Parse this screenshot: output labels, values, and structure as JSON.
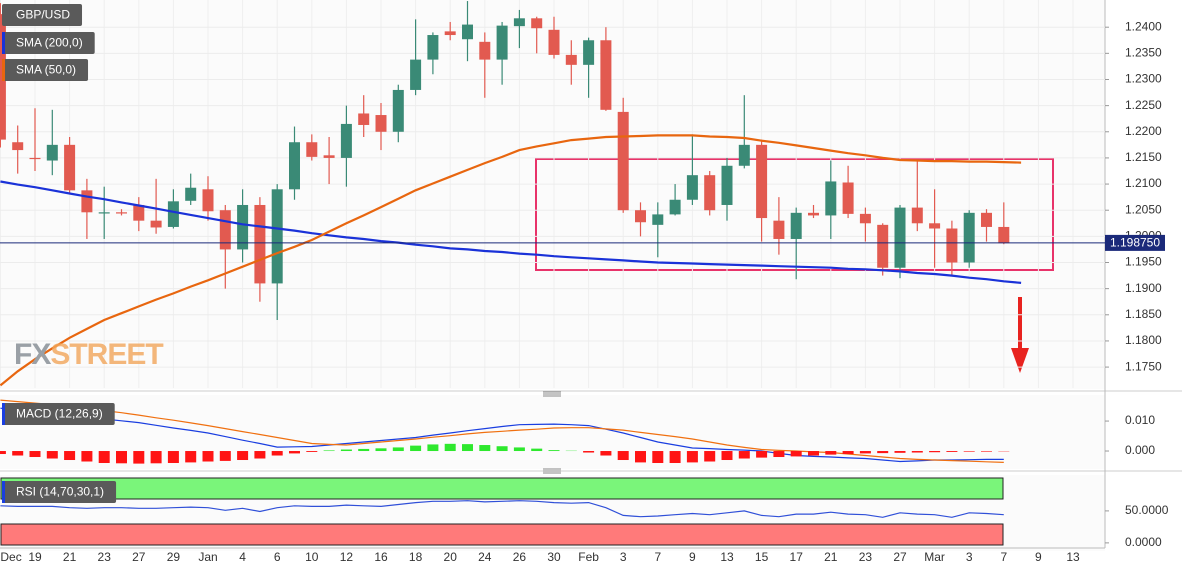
{
  "chart_data": [
    {
      "type": "candlestick",
      "categories": [
        "Dec",
        null,
        "19",
        null,
        "21",
        null,
        "23",
        null,
        "27",
        null,
        "29",
        null,
        "Jan",
        null,
        "4",
        null,
        "6",
        null,
        "10",
        null,
        "12",
        null,
        "16",
        null,
        "18",
        null,
        "20",
        null,
        "24",
        null,
        "26",
        null,
        "30",
        null,
        "Feb",
        null,
        "3",
        null,
        "7",
        null,
        "9",
        null,
        "13",
        null,
        "15",
        null,
        "17",
        null,
        "21",
        null,
        "23",
        null,
        "27",
        null,
        "Mar",
        null,
        "3",
        null,
        "7",
        null,
        "9",
        null,
        "13",
        null
      ],
      "series": [
        {
          "name": "GBP/USD",
          "up_color": "#3a8a76",
          "down_color": "#e25a50",
          "open": [
            1.2425,
            1.218,
            1.215,
            1.2145,
            1.2175,
            1.2088,
            1.2044,
            1.2046,
            1.206,
            1.203,
            1.2018,
            1.2068,
            1.209,
            1.205,
            1.1975,
            1.206,
            1.191,
            1.209,
            1.218,
            1.2155,
            1.215,
            1.2235,
            1.2232,
            1.22,
            1.228,
            1.2338,
            1.2392,
            1.2377,
            1.2372,
            1.2338,
            1.2402,
            1.2417,
            1.2395,
            1.2347,
            1.2328,
            1.2375,
            1.2238,
            1.205,
            1.2022,
            1.2042,
            1.207,
            1.2117,
            1.206,
            1.2135,
            1.2175,
            1.203,
            1.1995,
            1.2045,
            1.204,
            1.2103,
            1.2043,
            1.2022,
            1.194,
            1.2055,
            1.2025,
            1.2015,
            1.195,
            1.2045,
            1.2018,
            null,
            null,
            null,
            null,
            null
          ],
          "high": [
            1.2446,
            1.2212,
            1.2245,
            1.2242,
            1.219,
            1.211,
            1.2095,
            1.2052,
            1.2075,
            1.211,
            1.209,
            1.212,
            1.2115,
            1.206,
            1.209,
            1.2075,
            1.21,
            1.221,
            1.2195,
            1.219,
            1.225,
            1.227,
            1.2255,
            1.229,
            1.2415,
            1.239,
            1.241,
            1.245,
            1.239,
            1.241,
            1.2433,
            1.242,
            1.242,
            1.2375,
            1.238,
            1.24,
            1.2265,
            1.2065,
            1.2065,
            1.21,
            1.2195,
            1.2125,
            1.215,
            1.227,
            1.2185,
            1.2075,
            1.2055,
            1.206,
            1.2145,
            1.2135,
            1.2055,
            1.2025,
            1.206,
            1.2145,
            1.209,
            1.203,
            1.205,
            1.2052,
            1.2065,
            null,
            null,
            null,
            null,
            null
          ],
          "low": [
            1.217,
            1.212,
            1.2125,
            1.2117,
            1.208,
            1.1995,
            1.1995,
            1.204,
            1.201,
            1.2005,
            1.2015,
            1.206,
            1.203,
            1.19,
            1.195,
            1.1875,
            1.184,
            1.207,
            1.2145,
            1.21,
            1.2095,
            1.219,
            1.2165,
            1.218,
            1.227,
            1.231,
            1.2375,
            1.2335,
            1.2265,
            1.229,
            1.236,
            1.235,
            1.234,
            1.229,
            1.2265,
            1.224,
            1.2045,
            1.2,
            1.196,
            1.204,
            1.206,
            1.204,
            1.203,
            1.213,
            1.199,
            1.1965,
            1.1918,
            1.2035,
            1.1995,
            1.2035,
            1.199,
            1.1925,
            1.192,
            1.201,
            1.194,
            1.1925,
            1.194,
            1.199,
            1.1985,
            null,
            null,
            null,
            null,
            null
          ],
          "close": [
            1.2185,
            1.2165,
            1.2148,
            1.2175,
            1.2088,
            1.2046,
            1.2046,
            1.2045,
            1.203,
            1.2017,
            1.2067,
            1.2093,
            1.2048,
            1.1975,
            1.206,
            1.191,
            1.209,
            1.218,
            1.2152,
            1.215,
            1.2215,
            1.2213,
            1.22,
            1.228,
            1.2338,
            1.2385,
            1.2385,
            1.2405,
            1.2338,
            1.2403,
            1.2417,
            1.2398,
            1.2347,
            1.2328,
            1.2375,
            1.2242,
            1.205,
            1.2027,
            1.2042,
            1.207,
            1.2117,
            1.205,
            1.2135,
            1.2175,
            1.2035,
            1.1995,
            1.2045,
            1.204,
            1.2105,
            1.2043,
            1.2025,
            1.194,
            1.2055,
            1.2025,
            1.2015,
            1.195,
            1.2045,
            1.2018,
            1.1987,
            null,
            null,
            null,
            null,
            null
          ]
        },
        {
          "name": "SMA (200,0)",
          "color": "#1a32d8",
          "values": [
            1.2105,
            1.2099,
            1.2094,
            1.2088,
            1.2082,
            1.2076,
            1.2071,
            1.2065,
            1.2059,
            1.2053,
            1.2047,
            1.2041,
            1.2035,
            1.2029,
            1.2023,
            1.2019,
            1.2015,
            1.2011,
            1.2006,
            1.2002,
            1.1998,
            1.1995,
            1.1991,
            1.1988,
            1.1984,
            1.1981,
            1.1977,
            1.1975,
            1.1972,
            1.197,
            1.1967,
            1.1965,
            1.1962,
            1.196,
            1.1958,
            1.1956,
            1.1954,
            1.1952,
            1.195,
            1.1949,
            1.1948,
            1.1947,
            1.1946,
            1.1945,
            1.1944,
            1.1943,
            1.1942,
            1.1941,
            1.194,
            1.1938,
            1.1937,
            1.1935,
            1.1933,
            1.193,
            1.1928,
            1.1925,
            1.1921,
            1.1918,
            1.1914,
            1.1911,
            null,
            null,
            null,
            null
          ]
        },
        {
          "name": "SMA (50,0)",
          "color": "#e8660f",
          "values": [
            1.1715,
            1.1742,
            1.1765,
            1.1786,
            1.1806,
            1.1823,
            1.184,
            1.1853,
            1.1866,
            1.1879,
            1.1891,
            1.1904,
            1.1916,
            1.1929,
            1.1942,
            1.1955,
            1.1968,
            1.198,
            1.1993,
            1.2009,
            1.2025,
            1.204,
            1.2056,
            1.2072,
            1.2088,
            1.2101,
            1.2114,
            1.2127,
            1.214,
            1.2152,
            1.2165,
            1.2172,
            1.2178,
            1.2184,
            1.2187,
            1.219,
            1.2191,
            1.2192,
            1.2193,
            1.2193,
            1.2193,
            1.2191,
            1.219,
            1.2188,
            1.2183,
            1.2179,
            1.2174,
            1.2169,
            1.2164,
            1.2159,
            1.2155,
            1.215,
            1.2146,
            1.2145,
            1.2144,
            1.2144,
            1.2143,
            1.2143,
            1.2142,
            1.2141,
            null,
            null,
            null,
            null
          ]
        }
      ],
      "ylim": [
        1.171,
        1.2452
      ],
      "yticks": [
        {
          "value": 1.175,
          "label": "1.1750"
        },
        {
          "value": 1.18,
          "label": "1.1800"
        },
        {
          "value": 1.185,
          "label": "1.1850"
        },
        {
          "value": 1.19,
          "label": "1.1900"
        },
        {
          "value": 1.195,
          "label": "1.1950"
        },
        {
          "value": 1.2,
          "label": "1.2000"
        },
        {
          "value": 1.205,
          "label": "1.2050"
        },
        {
          "value": 1.21,
          "label": "1.2100"
        },
        {
          "value": 1.215,
          "label": "1.2150"
        },
        {
          "value": 1.22,
          "label": "1.2200"
        },
        {
          "value": 1.225,
          "label": "1.2250"
        },
        {
          "value": 1.23,
          "label": "1.2300"
        },
        {
          "value": 1.235,
          "label": "1.2350"
        },
        {
          "value": 1.24,
          "label": "1.2400"
        }
      ],
      "grid": true,
      "last_price": {
        "value": 1.19875,
        "label": "1.198750"
      },
      "watermark": [
        "FX",
        "STREET"
      ]
    },
    {
      "type": "macd",
      "title": "MACD (12,26,9)",
      "series": [
        {
          "type": "line",
          "color": "#1a3ee0",
          "values": [
            0.0143,
            0.0137,
            0.0131,
            0.0126,
            0.012,
            0.0114,
            0.0107,
            0.0101,
            0.0095,
            0.0086,
            0.0077,
            0.0069,
            0.006,
            0.0048,
            0.0036,
            0.0025,
            0.0013,
            0.0014,
            0.0015,
            0.002,
            0.0025,
            0.003,
            0.0035,
            0.004,
            0.0045,
            0.0053,
            0.006,
            0.0068,
            0.0075,
            0.0082,
            0.0088,
            0.0089,
            0.009,
            0.0088,
            0.0085,
            0.0073,
            0.006,
            0.0045,
            0.003,
            0.002,
            0.001,
            0.0008,
            0.0005,
            0.0003,
            0.0,
            -0.0008,
            -0.0015,
            -0.0018,
            -0.002,
            -0.0023,
            -0.0025,
            -0.003,
            -0.0035,
            -0.0033,
            -0.003,
            -0.003,
            -0.0029,
            -0.0028,
            -0.0028,
            null,
            null,
            null,
            null,
            null
          ]
        },
        {
          "type": "line",
          "color": "#f07010",
          "values": [
            0.017,
            0.0165,
            0.016,
            0.0155,
            0.015,
            0.0142,
            0.0135,
            0.0128,
            0.012,
            0.0111,
            0.0103,
            0.0094,
            0.0085,
            0.0075,
            0.0065,
            0.0055,
            0.0045,
            0.0035,
            0.0025,
            0.0022,
            0.002,
            0.0025,
            0.003,
            0.0035,
            0.004,
            0.0046,
            0.0051,
            0.0057,
            0.0062,
            0.0066,
            0.007,
            0.0073,
            0.0077,
            0.0078,
            0.0078,
            0.0074,
            0.007,
            0.0062,
            0.0055,
            0.0048,
            0.004,
            0.003,
            0.002,
            0.0012,
            0.0005,
            0.0002,
            0.0,
            -0.0003,
            -0.0005,
            -0.001,
            -0.0015,
            -0.002,
            -0.0025,
            -0.0028,
            -0.003,
            -0.0032,
            -0.0034,
            -0.0036,
            -0.0038,
            null,
            null,
            null,
            null,
            null
          ]
        },
        {
          "type": "bar",
          "up_color": "#2ee82e",
          "down_color": "#ff1414",
          "values": [
            -0.001,
            -0.0015,
            -0.002,
            -0.0025,
            -0.003,
            -0.0035,
            -0.004,
            -0.0041,
            -0.0042,
            -0.0041,
            -0.004,
            -0.0038,
            -0.0035,
            -0.0033,
            -0.003,
            -0.0025,
            -0.0015,
            -0.0008,
            -0.0003,
            0.0002,
            0.0005,
            0.0007,
            0.0009,
            0.0012,
            0.0018,
            0.0022,
            0.0024,
            0.0023,
            0.002,
            0.0016,
            0.0012,
            0.0008,
            0.0003,
            0.0001,
            -0.0005,
            -0.0015,
            -0.003,
            -0.0038,
            -0.004,
            -0.004,
            -0.0038,
            -0.0035,
            -0.003,
            -0.0025,
            -0.0022,
            -0.002,
            -0.0018,
            -0.0015,
            -0.0012,
            -0.001,
            -0.0008,
            -0.0007,
            -0.0006,
            -0.0005,
            -0.0004,
            -0.0003,
            -0.0002,
            -0.0002,
            -0.0001,
            null,
            null,
            null,
            null,
            null
          ]
        }
      ],
      "ylim": [
        -0.005,
        0.0177
      ],
      "yticks": [
        {
          "value": 0,
          "label": "0.000"
        },
        {
          "value": 0.01,
          "label": "0.010"
        }
      ]
    },
    {
      "type": "line",
      "title": "RSI (14,70,30,1)",
      "series": [
        {
          "color": "#3050d8",
          "values": [
            58,
            57,
            57,
            57,
            55,
            54,
            55,
            55,
            54,
            54,
            55,
            56,
            55,
            51,
            54,
            49,
            55,
            58,
            57,
            57,
            59,
            58,
            57,
            60,
            63,
            65,
            65,
            66,
            64,
            65,
            66,
            65,
            63,
            62,
            63,
            55,
            43,
            41,
            42,
            44,
            46,
            44,
            47,
            50,
            43,
            41,
            45,
            45,
            48,
            45,
            44,
            40,
            47,
            45,
            44,
            40,
            47,
            46,
            44,
            null,
            null,
            null,
            null,
            null
          ]
        }
      ],
      "ylim": [
        -8,
        103
      ],
      "yticks": [
        {
          "value": 0,
          "label": "0.0000"
        },
        {
          "value": 50,
          "label": "50.0000"
        }
      ]
    }
  ]
}
